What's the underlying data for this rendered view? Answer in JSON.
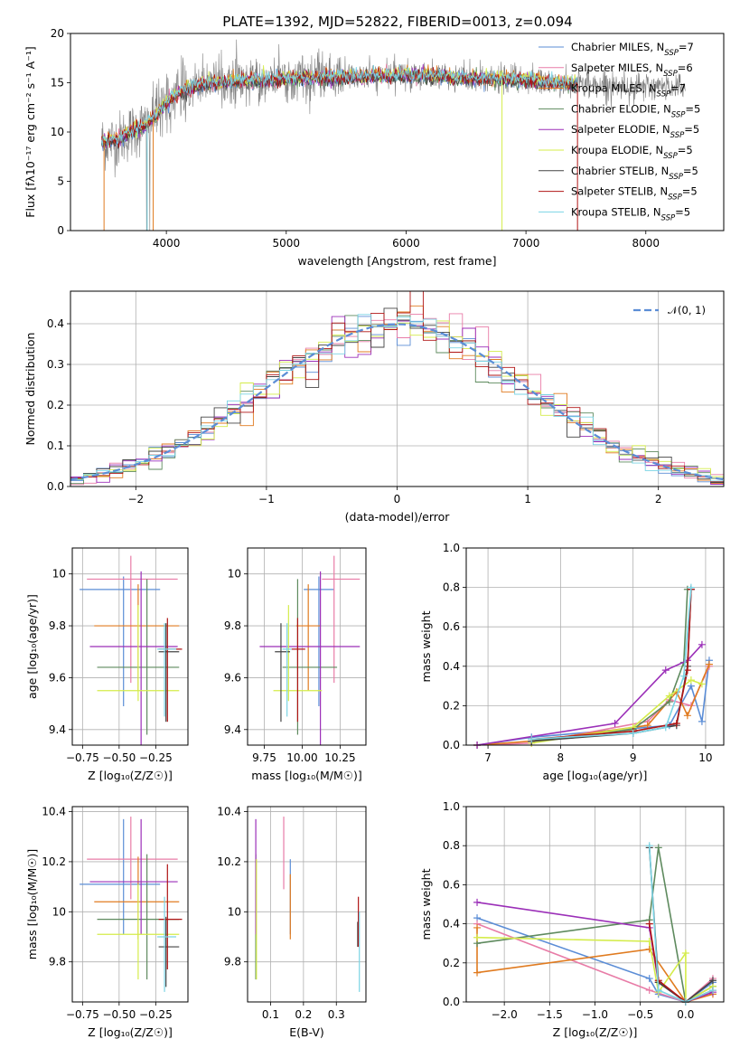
{
  "figure": {
    "title": "PLATE=1392, MJD=52822, FIBERID=0013, z=0.094"
  },
  "series_styles": [
    {
      "name": "Chabrier MILES",
      "color": "#5b8dd6"
    },
    {
      "name": "Salpeter MILES",
      "color": "#e87ca7"
    },
    {
      "name": "Kroupa MILES",
      "color": "#e07b20"
    },
    {
      "name": "Chabrier ELODIE",
      "color": "#5e8a5e"
    },
    {
      "name": "Salpeter ELODIE",
      "color": "#9b2fb8"
    },
    {
      "name": "Kroupa ELODIE",
      "color": "#d4ec4a"
    },
    {
      "name": "Chabrier STELIB",
      "color": "#444444"
    },
    {
      "name": "Salpeter STELIB",
      "color": "#b01515"
    },
    {
      "name": "Kroupa STELIB",
      "color": "#7bd4e4"
    }
  ],
  "chart_data": [
    {
      "id": "spectrum",
      "type": "line",
      "title": "PLATE=1392, MJD=52822, FIBERID=0013, z=0.094",
      "xlabel": "wavelength [Angstrom, rest frame]",
      "ylabel": "Flux [fλ10⁻¹⁷ erg cm⁻² s⁻¹ A⁻¹]",
      "xlim": [
        3200,
        8650
      ],
      "ylim": [
        0,
        20
      ],
      "xticks": [
        4000,
        5000,
        6000,
        7000,
        8000
      ],
      "yticks": [
        0,
        5,
        10,
        15,
        20
      ],
      "grid": false,
      "legend_position": "top-right",
      "legend": [
        "Chabrier MILES, N_SSP=7",
        "Salpeter MILES, N_SSP=6",
        "Kroupa MILES, N_SSP=7",
        "Chabrier ELODIE, N_SSP=5",
        "Salpeter ELODIE, N_SSP=5",
        "Kroupa ELODIE, N_SSP=5",
        "Chabrier STELIB, N_SSP=5",
        "Salpeter STELIB, N_SSP=5",
        "Kroupa STELIB, N_SSP=5"
      ],
      "legend_main": [
        "Chabrier MILES, N",
        "Salpeter MILES, N",
        "Kroupa MILES, N",
        "Chabrier ELODIE, N",
        "Salpeter ELODIE, N",
        "Kroupa ELODIE, N",
        "Chabrier STELIB, N",
        "Salpeter STELIB, N",
        "Kroupa STELIB, N"
      ],
      "legend_sub": "SSP",
      "legend_n": [
        "=7",
        "=6",
        "=7",
        "=5",
        "=5",
        "=5",
        "=5",
        "=5",
        "=5"
      ],
      "continuum": {
        "x": [
          3480,
          3600,
          3700,
          3800,
          3900,
          4000,
          4100,
          4200,
          4300,
          4400,
          4600,
          4800,
          5000,
          5200,
          5400,
          5600,
          5800,
          6000,
          6200,
          6400,
          6600,
          6800,
          7000,
          7200,
          7400,
          7600,
          7800,
          8000,
          8200,
          8300
        ],
        "y": [
          9.0,
          9.2,
          10.0,
          10.5,
          11.5,
          13.0,
          14.0,
          14.5,
          14.8,
          15.0,
          15.2,
          15.3,
          15.4,
          15.5,
          15.6,
          15.6,
          15.7,
          15.8,
          15.7,
          15.5,
          15.4,
          15.3,
          15.3,
          15.0,
          14.9,
          14.8,
          14.7,
          14.5,
          14.6,
          14.7
        ]
      },
      "data_x_range": [
        3460,
        8330
      ],
      "model_x_range": [
        3460,
        7430
      ]
    },
    {
      "id": "residuals",
      "type": "line",
      "xlabel": "(data-model)/error",
      "ylabel": "Normed distribution",
      "xlim": [
        -2.5,
        2.5
      ],
      "ylim": [
        0,
        0.48
      ],
      "xticks": [
        -2,
        -1,
        0,
        1,
        2
      ],
      "xtick_labels": [
        "−2",
        "−1",
        "0",
        "1",
        "2"
      ],
      "yticks": [
        0.0,
        0.1,
        0.2,
        0.3,
        0.4
      ],
      "grid": true,
      "legend_position": "top-right",
      "legend": [
        "𝒩(0, 1)"
      ],
      "gaussian": {
        "mean": 0,
        "sigma": 1,
        "color": "#5b8dd6"
      },
      "histogram_bin_width": 0.1
    },
    {
      "id": "age-vs-Z",
      "type": "scatter",
      "xlabel": "Z [log₁₀(Z/Z☉)]",
      "ylabel": "age  [log₁₀(age/yr)]",
      "xlim": [
        -0.82,
        -0.03
      ],
      "ylim": [
        9.34,
        10.1
      ],
      "xticks": [
        -0.75,
        -0.5,
        -0.25
      ],
      "xtick_labels": [
        "−0.75",
        "−0.50",
        "−0.25"
      ],
      "yticks": [
        9.4,
        9.6,
        9.8,
        10.0
      ],
      "grid": true,
      "points": [
        {
          "series": 0,
          "x": -0.47,
          "y": 9.94,
          "xerr": [
            0.3,
            0.25
          ],
          "yerr": [
            0.45,
            0.05
          ]
        },
        {
          "series": 1,
          "x": -0.42,
          "y": 9.98,
          "xerr": [
            0.3,
            0.32
          ],
          "yerr": [
            0.4,
            0.09
          ]
        },
        {
          "series": 2,
          "x": -0.37,
          "y": 9.8,
          "xerr": [
            0.3,
            0.28
          ],
          "yerr": [
            0.25,
            0.16
          ]
        },
        {
          "series": 3,
          "x": -0.31,
          "y": 9.64,
          "xerr": [
            0.34,
            0.22
          ],
          "yerr": [
            0.26,
            0.34
          ]
        },
        {
          "series": 4,
          "x": -0.35,
          "y": 9.72,
          "xerr": [
            0.35,
            0.25
          ],
          "yerr": [
            0.8,
            0.29
          ]
        },
        {
          "series": 5,
          "x": -0.37,
          "y": 9.55,
          "xerr": [
            0.28,
            0.28
          ],
          "yerr": [
            0.04,
            0.33
          ]
        },
        {
          "series": 6,
          "x": -0.18,
          "y": 9.7,
          "xerr": [
            0.05,
            0.09
          ],
          "yerr": [
            0.27,
            0.11
          ]
        },
        {
          "series": 7,
          "x": -0.17,
          "y": 9.71,
          "xerr": [
            0.06,
            0.1
          ],
          "yerr": [
            0.28,
            0.12
          ]
        },
        {
          "series": 8,
          "x": -0.19,
          "y": 9.71,
          "xerr": [
            0.05,
            0.08
          ],
          "yerr": [
            0.26,
            0.1
          ]
        }
      ]
    },
    {
      "id": "age-vs-mass",
      "type": "scatter",
      "xlabel": "mass [log₁₀(M/M☉)]",
      "ylabel": "",
      "xlim": [
        9.64,
        10.42
      ],
      "ylim": [
        9.34,
        10.1
      ],
      "xticks": [
        9.75,
        10.0,
        10.25
      ],
      "xtick_labels": [
        "9.75",
        "10.00",
        "10.25"
      ],
      "yticks": [
        9.4,
        9.6,
        9.8,
        10.0
      ],
      "grid": true,
      "points": [
        {
          "series": 0,
          "x": 10.11,
          "y": 9.94,
          "xerr": [
            0.1,
            0.1
          ],
          "yerr": [
            0.45,
            0.05
          ]
        },
        {
          "series": 1,
          "x": 10.21,
          "y": 9.98,
          "xerr": [
            0.08,
            0.17
          ],
          "yerr": [
            0.4,
            0.09
          ]
        },
        {
          "series": 2,
          "x": 10.04,
          "y": 9.8,
          "xerr": [
            0.08,
            0.08
          ],
          "yerr": [
            0.25,
            0.16
          ]
        },
        {
          "series": 3,
          "x": 9.97,
          "y": 9.64,
          "xerr": [
            0.1,
            0.26
          ],
          "yerr": [
            0.26,
            0.34
          ]
        },
        {
          "series": 4,
          "x": 10.12,
          "y": 9.72,
          "xerr": [
            0.4,
            0.26
          ],
          "yerr": [
            0.8,
            0.29
          ]
        },
        {
          "series": 5,
          "x": 9.91,
          "y": 9.55,
          "xerr": [
            0.1,
            0.22
          ],
          "yerr": [
            0.04,
            0.33
          ]
        },
        {
          "series": 6,
          "x": 9.86,
          "y": 9.7,
          "xerr": [
            0.04,
            0.06
          ],
          "yerr": [
            0.27,
            0.11
          ]
        },
        {
          "series": 7,
          "x": 9.97,
          "y": 9.71,
          "xerr": [
            0.04,
            0.05
          ],
          "yerr": [
            0.28,
            0.12
          ]
        },
        {
          "series": 8,
          "x": 9.9,
          "y": 9.71,
          "xerr": [
            0.03,
            0.03
          ],
          "yerr": [
            0.26,
            0.1
          ]
        }
      ]
    },
    {
      "id": "weight-vs-age",
      "type": "line",
      "xlabel": "age  [log₁₀(age/yr)]",
      "ylabel": "mass weight",
      "xlim": [
        6.7,
        10.25
      ],
      "ylim": [
        0,
        1.0
      ],
      "xticks": [
        7,
        8,
        9,
        10
      ],
      "yticks": [
        0.0,
        0.2,
        0.4,
        0.6,
        0.8,
        1.0
      ],
      "grid": true,
      "series": [
        {
          "series": 0,
          "x": [
            6.85,
            7.6,
            9.5,
            9.8,
            9.95,
            10.05
          ],
          "y": [
            0.0,
            0.04,
            0.1,
            0.3,
            0.12,
            0.43
          ]
        },
        {
          "series": 1,
          "x": [
            6.85,
            7.6,
            9.2,
            9.5,
            9.8,
            10.05
          ],
          "y": [
            0.0,
            0.01,
            0.12,
            0.23,
            0.2,
            0.4
          ]
        },
        {
          "series": 2,
          "x": [
            6.85,
            7.6,
            9.2,
            9.6,
            9.75,
            10.05
          ],
          "y": [
            0.0,
            0.02,
            0.1,
            0.27,
            0.15,
            0.41
          ]
        },
        {
          "series": 3,
          "x": [
            7.6,
            9.0,
            9.5,
            9.7,
            9.75
          ],
          "y": [
            0.02,
            0.08,
            0.22,
            0.42,
            0.79
          ]
        },
        {
          "series": 4,
          "x": [
            6.85,
            8.75,
            9.45,
            9.75,
            9.95
          ],
          "y": [
            0.0,
            0.11,
            0.38,
            0.43,
            0.51
          ]
        },
        {
          "series": 5,
          "x": [
            7.6,
            9.0,
            9.5,
            9.8,
            9.95
          ],
          "y": [
            0.01,
            0.09,
            0.25,
            0.33,
            0.31
          ]
        },
        {
          "series": 6,
          "x": [
            7.6,
            9.0,
            9.6,
            9.75,
            9.8
          ],
          "y": [
            0.02,
            0.06,
            0.1,
            0.4,
            0.79
          ]
        },
        {
          "series": 7,
          "x": [
            7.6,
            9.0,
            9.6,
            9.75,
            9.8
          ],
          "y": [
            0.03,
            0.07,
            0.11,
            0.38,
            0.79
          ]
        },
        {
          "series": 8,
          "x": [
            7.6,
            9.0,
            9.45,
            9.7,
            9.8
          ],
          "y": [
            0.03,
            0.06,
            0.09,
            0.35,
            0.8
          ]
        }
      ]
    },
    {
      "id": "mass-vs-Z",
      "type": "scatter",
      "xlabel": "Z [log₁₀(Z/Z☉)]",
      "ylabel": "mass [log₁₀(M/M☉)]",
      "xlim": [
        -0.82,
        -0.03
      ],
      "ylim": [
        9.64,
        10.42
      ],
      "xticks": [
        -0.75,
        -0.5,
        -0.25
      ],
      "xtick_labels": [
        "−0.75",
        "−0.50",
        "−0.25"
      ],
      "yticks": [
        9.8,
        10.0,
        10.2,
        10.4
      ],
      "grid": true,
      "points": [
        {
          "series": 0,
          "x": -0.47,
          "y": 10.11,
          "xerr": [
            0.3,
            0.25
          ],
          "yerr": [
            0.2,
            0.26
          ]
        },
        {
          "series": 1,
          "x": -0.42,
          "y": 10.21,
          "xerr": [
            0.3,
            0.32
          ],
          "yerr": [
            0.16,
            0.17
          ]
        },
        {
          "series": 2,
          "x": -0.37,
          "y": 10.04,
          "xerr": [
            0.3,
            0.28
          ],
          "yerr": [
            0.15,
            0.18
          ]
        },
        {
          "series": 3,
          "x": -0.31,
          "y": 9.97,
          "xerr": [
            0.34,
            0.22
          ],
          "yerr": [
            0.24,
            0.26
          ]
        },
        {
          "series": 4,
          "x": -0.35,
          "y": 10.12,
          "xerr": [
            0.35,
            0.25
          ],
          "yerr": [
            0.21,
            0.25
          ]
        },
        {
          "series": 5,
          "x": -0.37,
          "y": 9.91,
          "xerr": [
            0.28,
            0.28
          ],
          "yerr": [
            0.18,
            0.2
          ]
        },
        {
          "series": 6,
          "x": -0.18,
          "y": 9.86,
          "xerr": [
            0.05,
            0.09
          ],
          "yerr": [
            0.16,
            0.12
          ]
        },
        {
          "series": 7,
          "x": -0.17,
          "y": 9.97,
          "xerr": [
            0.06,
            0.1
          ],
          "yerr": [
            0.2,
            0.22
          ]
        },
        {
          "series": 8,
          "x": -0.19,
          "y": 9.9,
          "xerr": [
            0.05,
            0.08
          ],
          "yerr": [
            0.22,
            0.16
          ]
        }
      ]
    },
    {
      "id": "mass-vs-ebv",
      "type": "scatter",
      "xlabel": "E(B-V)",
      "ylabel": "",
      "xlim": [
        0.03,
        0.39
      ],
      "ylim": [
        9.64,
        10.42
      ],
      "xticks": [
        0.1,
        0.2,
        0.3
      ],
      "xtick_labels": [
        "0.1",
        "0.2",
        "0.3"
      ],
      "yticks": [
        9.8,
        10.0,
        10.2,
        10.4
      ],
      "grid": true,
      "points": [
        {
          "series": 0,
          "x": 0.16,
          "y": 10.11,
          "xerr": [
            0,
            0
          ],
          "yerr": [
            0.2,
            0.1
          ]
        },
        {
          "series": 1,
          "x": 0.14,
          "y": 10.21,
          "xerr": [
            0,
            0
          ],
          "yerr": [
            0.12,
            0.17
          ]
        },
        {
          "series": 2,
          "x": 0.16,
          "y": 10.04,
          "xerr": [
            0,
            0
          ],
          "yerr": [
            0.15,
            0.11
          ]
        },
        {
          "series": 3,
          "x": 0.055,
          "y": 9.97,
          "xerr": [
            0,
            0
          ],
          "yerr": [
            0.24,
            0.26
          ]
        },
        {
          "series": 4,
          "x": 0.055,
          "y": 10.12,
          "xerr": [
            0,
            0
          ],
          "yerr": [
            0.21,
            0.25
          ]
        },
        {
          "series": 5,
          "x": 0.057,
          "y": 9.91,
          "xerr": [
            0,
            0
          ],
          "yerr": [
            0.18,
            0.3
          ]
        },
        {
          "series": 6,
          "x": 0.365,
          "y": 9.86,
          "xerr": [
            0,
            0
          ],
          "yerr": [
            0.0,
            0.1
          ]
        },
        {
          "series": 7,
          "x": 0.367,
          "y": 9.97,
          "xerr": [
            0,
            0
          ],
          "yerr": [
            0.11,
            0.09
          ]
        },
        {
          "series": 8,
          "x": 0.37,
          "y": 9.9,
          "xerr": [
            0,
            0
          ],
          "yerr": [
            0.22,
            0.1
          ]
        }
      ]
    },
    {
      "id": "weight-vs-Z",
      "type": "line",
      "xlabel": "Z [log₁₀(Z/Z☉)]",
      "ylabel": "mass weight",
      "xlim": [
        -2.42,
        0.42
      ],
      "ylim": [
        0,
        1.0
      ],
      "xticks": [
        -2.0,
        -1.5,
        -1.0,
        -0.5,
        0.0
      ],
      "xtick_labels": [
        "−2.0",
        "−1.5",
        "−1.0",
        "−0.5",
        "0.0"
      ],
      "yticks": [
        0.0,
        0.2,
        0.4,
        0.6,
        0.8,
        1.0
      ],
      "grid": true,
      "series": [
        {
          "series": 0,
          "x": [
            -2.3,
            -0.4,
            -0.3,
            0.0,
            0.3
          ],
          "y": [
            0.43,
            0.12,
            0.04,
            0.0,
            0.1
          ]
        },
        {
          "series": 1,
          "x": [
            -2.3,
            -0.4,
            0.0,
            0.3
          ],
          "y": [
            0.4,
            0.06,
            0.0,
            0.12
          ]
        },
        {
          "series": 2,
          "x": [
            -2.3,
            -2.3,
            -0.4,
            0.0,
            0.3
          ],
          "y": [
            0.38,
            0.15,
            0.27,
            0.0,
            0.04
          ]
        },
        {
          "series": 3,
          "x": [
            -2.3,
            -0.4,
            -0.3,
            0.0,
            0.3
          ],
          "y": [
            0.3,
            0.42,
            0.79,
            0.0,
            0.08
          ]
        },
        {
          "series": 4,
          "x": [
            -2.3,
            -0.4,
            -0.3,
            0.0,
            0.3
          ],
          "y": [
            0.51,
            0.38,
            0.1,
            0.0,
            0.05
          ]
        },
        {
          "series": 5,
          "x": [
            -2.3,
            -0.4,
            -0.3,
            0.0,
            0.0,
            0.3
          ],
          "y": [
            0.33,
            0.31,
            0.05,
            0.25,
            0.0,
            0.08
          ]
        },
        {
          "series": 6,
          "x": [
            -0.4,
            -0.3,
            0.0,
            0.3
          ],
          "y": [
            0.79,
            0.1,
            0.0,
            0.11
          ]
        },
        {
          "series": 7,
          "x": [
            -0.4,
            -0.3,
            0.0,
            0.3
          ],
          "y": [
            0.4,
            0.11,
            0.0,
            0.06
          ]
        },
        {
          "series": 8,
          "x": [
            -0.4,
            -0.3,
            0.0,
            0.3
          ],
          "y": [
            0.8,
            0.06,
            0.0,
            0.06
          ]
        }
      ]
    }
  ]
}
